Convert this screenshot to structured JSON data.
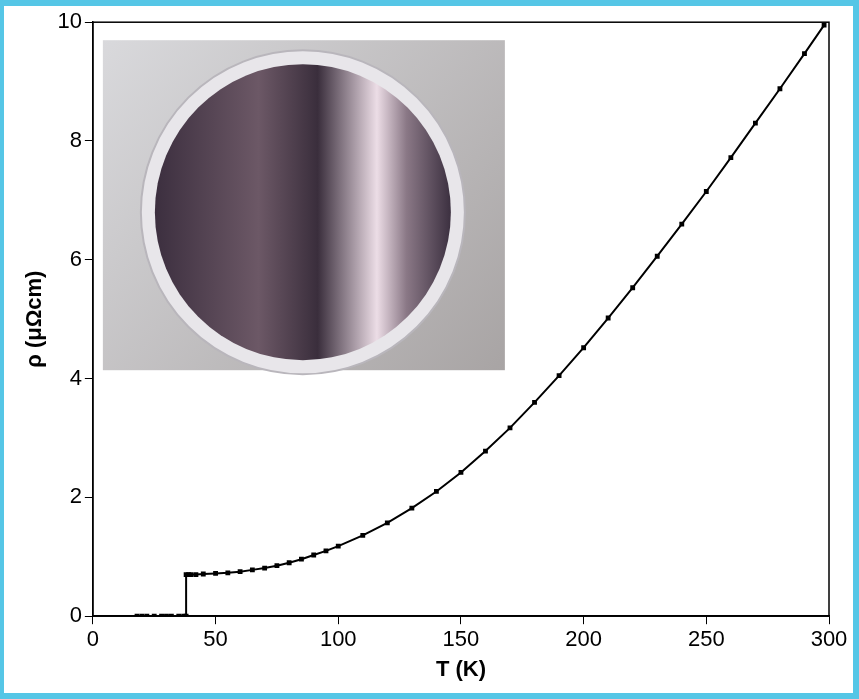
{
  "chart_data": {
    "type": "line",
    "x_label": "T (K)",
    "y_label": "ρ (μΩcm)",
    "x": [
      18,
      20,
      22,
      25,
      28,
      30,
      32,
      35,
      37,
      38,
      38,
      39,
      40,
      42,
      45,
      50,
      55,
      60,
      65,
      70,
      75,
      80,
      85,
      90,
      95,
      100,
      110,
      120,
      130,
      140,
      150,
      160,
      170,
      180,
      190,
      200,
      210,
      220,
      230,
      240,
      250,
      260,
      270,
      280,
      290,
      298
    ],
    "values": [
      0,
      0,
      0,
      0,
      0,
      0,
      0,
      0,
      0,
      0,
      0.7,
      0.7,
      0.7,
      0.7,
      0.71,
      0.72,
      0.73,
      0.75,
      0.78,
      0.81,
      0.85,
      0.9,
      0.96,
      1.03,
      1.1,
      1.18,
      1.36,
      1.57,
      1.82,
      2.1,
      2.42,
      2.78,
      3.17,
      3.6,
      4.05,
      4.52,
      5.02,
      5.53,
      6.06,
      6.6,
      7.15,
      7.72,
      8.3,
      8.88,
      9.47,
      9.95
    ],
    "color": "#000000",
    "marker": "square",
    "line_style": "solid",
    "xlim": [
      0,
      300
    ],
    "xticks": [
      0,
      50,
      100,
      150,
      200,
      250,
      300
    ],
    "ylim": [
      0,
      10
    ],
    "yticks": [
      0,
      2,
      4,
      6,
      8,
      10
    ],
    "grid": false
  }
}
